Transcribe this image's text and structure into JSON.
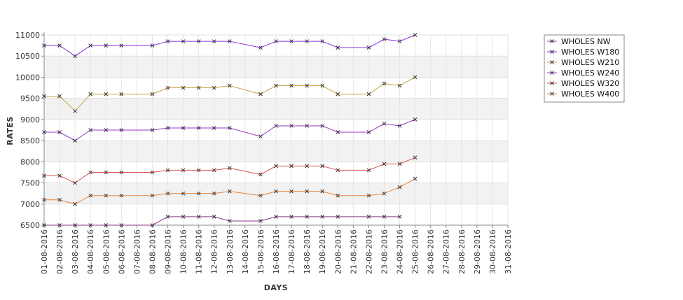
{
  "chart_data": {
    "type": "line",
    "title": "",
    "xlabel": "DAYS",
    "ylabel": "RATES",
    "ylim": [
      6500,
      11000
    ],
    "yticks": [
      6500,
      7000,
      7500,
      8000,
      8500,
      9000,
      9500,
      10000,
      10500,
      11000
    ],
    "grid": true,
    "legend_position": "top-right",
    "categories": [
      "01-08-2016",
      "02-08-2016",
      "03-08-2016",
      "04-08-2016",
      "05-08-2016",
      "06-08-2016",
      "07-08-2016",
      "08-08-2016",
      "09-08-2016",
      "10-08-2016",
      "11-08-2016",
      "12-08-2016",
      "13-08-2016",
      "14-08-2016",
      "15-08-2016",
      "16-08-2016",
      "17-08-2016",
      "18-08-2016",
      "19-08-2016",
      "20-08-2016",
      "21-08-2016",
      "22-08-2016",
      "23-08-2016",
      "24-08-2016",
      "25-08-2016",
      "26-08-2016",
      "27-08-2016",
      "28-08-2016",
      "29-08-2016",
      "30-08-2016",
      "31-08-2016"
    ],
    "series": [
      {
        "name": "WHOLES NW",
        "color": "#8b3a8b",
        "values": [
          6500,
          6500,
          6500,
          6500,
          6500,
          6500,
          null,
          6500,
          6700,
          6700,
          6700,
          6700,
          6600,
          null,
          6600,
          6700,
          6700,
          6700,
          6700,
          6700,
          null,
          6700,
          6700,
          6700,
          null,
          null,
          null,
          null,
          null,
          null,
          null
        ]
      },
      {
        "name": "WHOLES W180",
        "color": "#8a2be2",
        "values": [
          10750,
          10750,
          10500,
          10750,
          10750,
          10750,
          null,
          10750,
          10850,
          10850,
          10850,
          10850,
          10850,
          null,
          10700,
          10850,
          10850,
          10850,
          10850,
          10700,
          null,
          10700,
          10900,
          10850,
          11000,
          null,
          null,
          null,
          null,
          null,
          null
        ]
      },
      {
        "name": "WHOLES W210",
        "color": "#c8a040",
        "values": [
          9550,
          9550,
          9200,
          9600,
          9600,
          9600,
          null,
          9600,
          9750,
          9750,
          9750,
          9750,
          9800,
          null,
          9600,
          9800,
          9800,
          9800,
          9800,
          9600,
          null,
          9600,
          9850,
          9800,
          10000,
          null,
          null,
          null,
          null,
          null,
          null
        ]
      },
      {
        "name": "WHOLES W240",
        "color": "#9932cc",
        "values": [
          8700,
          8700,
          8500,
          8750,
          8750,
          8750,
          null,
          8750,
          8800,
          8800,
          8800,
          8800,
          8800,
          null,
          8600,
          8850,
          8850,
          8850,
          8850,
          8700,
          null,
          8700,
          8900,
          8850,
          9000,
          null,
          null,
          null,
          null,
          null,
          null
        ]
      },
      {
        "name": "WHOLES W320",
        "color": "#d9534f",
        "values": [
          7670,
          7670,
          7500,
          7750,
          7750,
          7750,
          null,
          7750,
          7800,
          7800,
          7800,
          7800,
          7850,
          null,
          7700,
          7900,
          7900,
          7900,
          7900,
          7800,
          null,
          7800,
          7950,
          7950,
          8100,
          null,
          null,
          null,
          null,
          null,
          null
        ]
      },
      {
        "name": "WHOLES W400",
        "color": "#e8843a",
        "values": [
          7100,
          7100,
          7000,
          7200,
          7200,
          7200,
          null,
          7200,
          7250,
          7250,
          7250,
          7250,
          7300,
          null,
          7200,
          7300,
          7300,
          7300,
          7300,
          7200,
          null,
          7200,
          7250,
          7400,
          7600,
          null,
          null,
          null,
          null,
          null,
          null
        ]
      }
    ]
  }
}
